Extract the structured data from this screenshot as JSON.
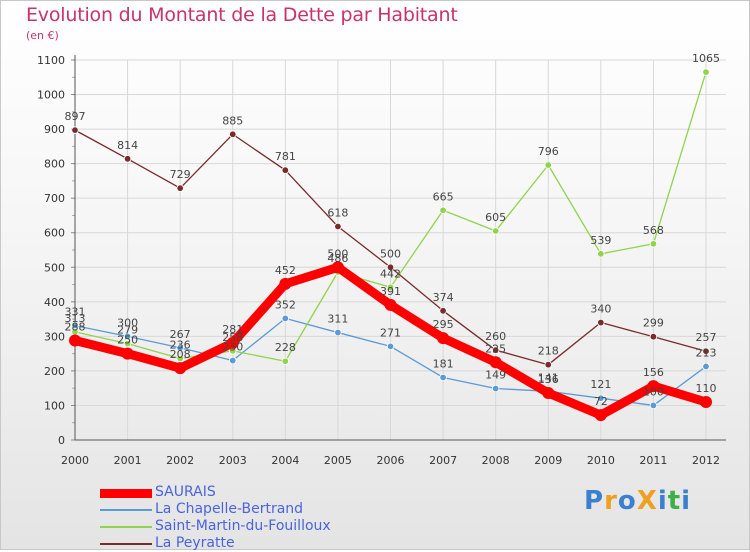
{
  "header": {
    "title": "Evolution du Montant de la Dette par Habitant",
    "unit": "(en €)"
  },
  "colors": {
    "title": "#c8336b",
    "legend_text": "#4a64dc",
    "grid": "#d8d8d8",
    "axis": "#333333"
  },
  "logo": {
    "text": "ProXiti",
    "letters": [
      "P",
      "r",
      "o",
      "X",
      "i",
      "t",
      "i"
    ],
    "letter_colors": [
      "#3b7fd0",
      "#f0a020",
      "#3b7fd0",
      "#f0a020",
      "#3b7fd0",
      "#3bb04a",
      "#3b7fd0"
    ]
  },
  "chart_data": {
    "type": "line",
    "title": "Evolution du Montant de la Dette par Habitant",
    "ylabel": "(en €)",
    "xlabel": "",
    "x": [
      2000,
      2001,
      2002,
      2003,
      2004,
      2005,
      2006,
      2007,
      2008,
      2009,
      2010,
      2011,
      2012
    ],
    "ylim": [
      0,
      1100
    ],
    "yticks": [
      0,
      100,
      200,
      300,
      400,
      500,
      600,
      700,
      800,
      900,
      1000,
      1100
    ],
    "grid": true,
    "legend_position": "bottom-left",
    "series": [
      {
        "name": "SAURAIS",
        "color": "#ff0000",
        "values": [
          288,
          250,
          208,
          281,
          452,
          500,
          391,
          295,
          225,
          136,
          72,
          156,
          110
        ],
        "labels": [
          288,
          250,
          208,
          281,
          452,
          500,
          391,
          295,
          225,
          136,
          72,
          156,
          110
        ],
        "thick": true
      },
      {
        "name": "La Chapelle-Bertrand",
        "color": "#5b9bd5",
        "values": [
          331,
          300,
          267,
          230,
          352,
          311,
          271,
          181,
          149,
          141,
          121,
          100,
          213
        ],
        "labels": [
          331,
          300,
          267,
          230,
          352,
          311,
          271,
          181,
          149,
          141,
          121,
          100,
          213
        ],
        "thick": false
      },
      {
        "name": "Saint-Martin-du-Fouilloux",
        "color": "#8fd44a",
        "values": [
          313,
          279,
          236,
          258,
          228,
          486,
          442,
          665,
          605,
          796,
          539,
          568,
          1065
        ],
        "labels": [
          313,
          279,
          236,
          258,
          228,
          486,
          442,
          665,
          605,
          796,
          539,
          568,
          1065
        ],
        "thick": false
      },
      {
        "name": "La Peyratte",
        "color": "#7a2a2a",
        "values": [
          897,
          814,
          729,
          885,
          781,
          618,
          500,
          374,
          260,
          218,
          340,
          299,
          257
        ],
        "labels": [
          897,
          814,
          729,
          885,
          781,
          618,
          500,
          374,
          260,
          218,
          340,
          299,
          257
        ],
        "thick": false
      }
    ]
  }
}
